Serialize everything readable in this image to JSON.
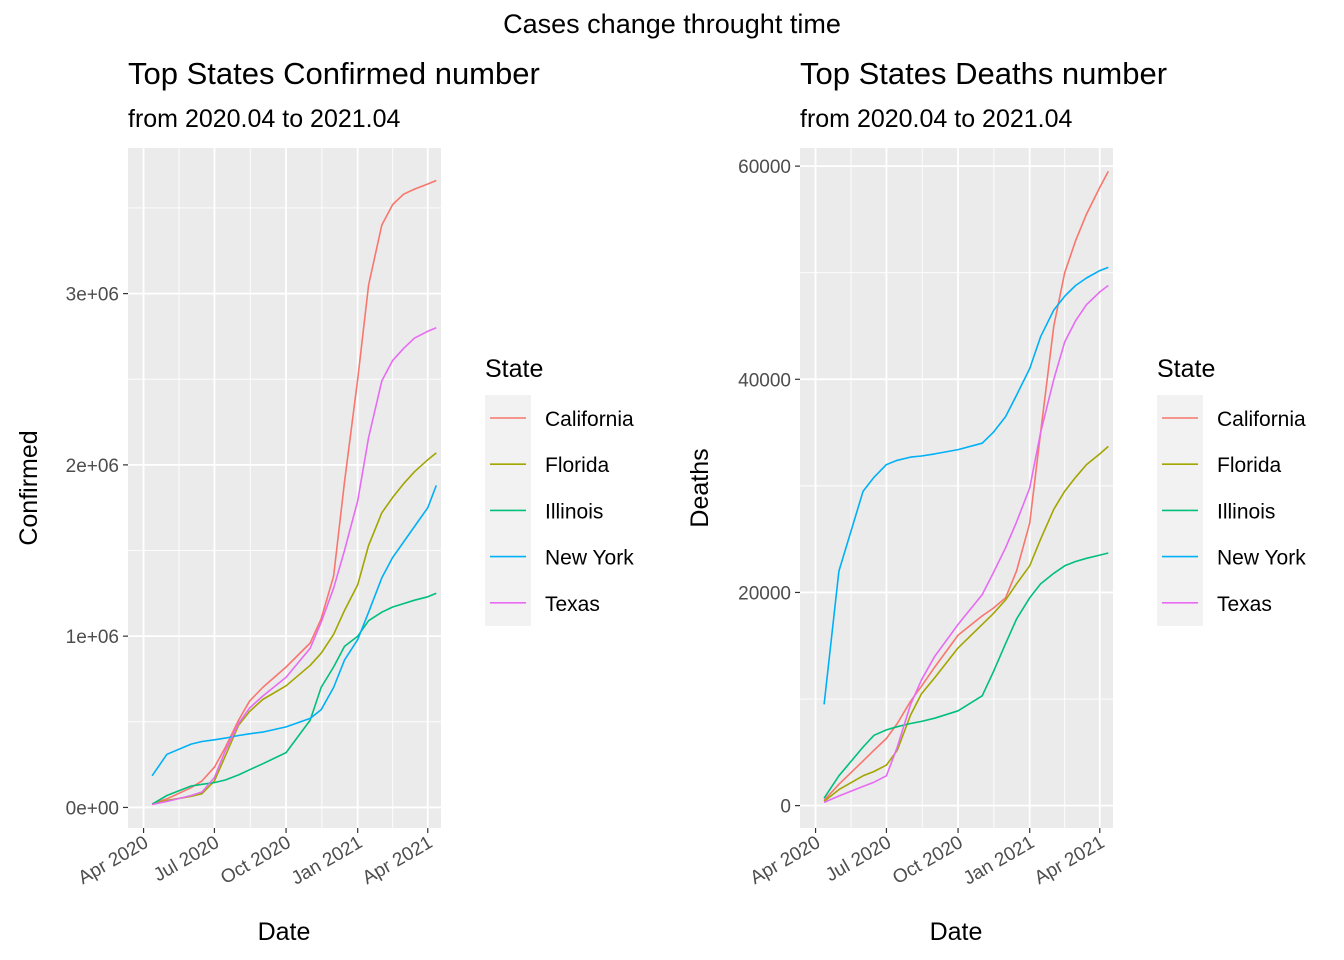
{
  "figure": {
    "title": "Cases change throught time"
  },
  "chart_data": [
    {
      "type": "line",
      "title": "Top States Confirmed number",
      "subtitle": "from 2020.04 to 2021.04",
      "xlabel": "Date",
      "ylabel": "Confirmed",
      "x_ticks": [
        "2020-04-01",
        "2020-07-01",
        "2020-10-01",
        "2021-01-01",
        "2021-04-01"
      ],
      "x_tick_labels": [
        "Apr 2020",
        "Jul 2020",
        "Oct 2020",
        "Jan 2021",
        "Apr 2021"
      ],
      "y_ticks": [
        0,
        1000000,
        2000000,
        3000000
      ],
      "y_tick_labels": [
        "0e+00",
        "1e+06",
        "2e+06",
        "3e+06"
      ],
      "xlim": [
        "2020-03-12",
        "2021-04-18"
      ],
      "ylim": [
        -120000,
        3850000
      ],
      "legend": {
        "title": "State",
        "position": "right"
      },
      "grid": true,
      "x": [
        "2020-04-12",
        "2020-05-01",
        "2020-06-01",
        "2020-06-15",
        "2020-07-01",
        "2020-07-15",
        "2020-08-01",
        "2020-08-15",
        "2020-09-01",
        "2020-10-01",
        "2020-11-01",
        "2020-11-15",
        "2020-12-01",
        "2020-12-15",
        "2021-01-01",
        "2021-01-15",
        "2021-02-01",
        "2021-02-15",
        "2021-03-01",
        "2021-03-15",
        "2021-04-01",
        "2021-04-12"
      ],
      "series": [
        {
          "name": "California",
          "color": "#F8766D",
          "values": [
            22000,
            50000,
            115000,
            155000,
            235000,
            350000,
            510000,
            620000,
            700000,
            820000,
            960000,
            1100000,
            1350000,
            1900000,
            2500000,
            3050000,
            3400000,
            3520000,
            3580000,
            3610000,
            3640000,
            3660000
          ]
        },
        {
          "name": "Florida",
          "color": "#A3A500",
          "values": [
            19000,
            40000,
            65000,
            80000,
            155000,
            300000,
            480000,
            560000,
            630000,
            710000,
            830000,
            900000,
            1010000,
            1150000,
            1300000,
            1530000,
            1720000,
            1810000,
            1890000,
            1960000,
            2030000,
            2070000
          ]
        },
        {
          "name": "Illinois",
          "color": "#00BF7D",
          "values": [
            19000,
            70000,
            125000,
            135000,
            145000,
            160000,
            190000,
            220000,
            255000,
            320000,
            510000,
            700000,
            820000,
            940000,
            1000000,
            1090000,
            1140000,
            1170000,
            1190000,
            1210000,
            1230000,
            1250000
          ]
        },
        {
          "name": "New York",
          "color": "#00B0F6",
          "values": [
            185000,
            310000,
            370000,
            385000,
            395000,
            405000,
            420000,
            430000,
            440000,
            470000,
            520000,
            570000,
            700000,
            860000,
            980000,
            1140000,
            1340000,
            1460000,
            1550000,
            1640000,
            1750000,
            1880000
          ]
        },
        {
          "name": "Texas",
          "color": "#E76BF3",
          "values": [
            17000,
            35000,
            70000,
            90000,
            175000,
            330000,
            490000,
            580000,
            650000,
            760000,
            930000,
            1080000,
            1280000,
            1500000,
            1790000,
            2160000,
            2490000,
            2610000,
            2680000,
            2740000,
            2780000,
            2800000
          ]
        }
      ]
    },
    {
      "type": "line",
      "title": "Top States Deaths number",
      "subtitle": "from 2020.04 to 2021.04",
      "xlabel": "Date",
      "ylabel": "Deaths",
      "x_ticks": [
        "2020-04-01",
        "2020-07-01",
        "2020-10-01",
        "2021-01-01",
        "2021-04-01"
      ],
      "x_tick_labels": [
        "Apr 2020",
        "Jul 2020",
        "Oct 2020",
        "Jan 2021",
        "Apr 2021"
      ],
      "y_ticks": [
        0,
        20000,
        40000,
        60000
      ],
      "y_tick_labels": [
        "0",
        "20000",
        "40000",
        "60000"
      ],
      "xlim": [
        "2020-03-12",
        "2021-04-18"
      ],
      "ylim": [
        -2100,
        61700
      ],
      "legend": {
        "title": "State",
        "position": "right"
      },
      "grid": true,
      "x": [
        "2020-04-12",
        "2020-05-01",
        "2020-06-01",
        "2020-06-15",
        "2020-07-01",
        "2020-07-15",
        "2020-08-01",
        "2020-08-15",
        "2020-09-01",
        "2020-10-01",
        "2020-11-01",
        "2020-11-15",
        "2020-12-01",
        "2020-12-15",
        "2021-01-01",
        "2021-01-15",
        "2021-02-01",
        "2021-02-15",
        "2021-03-01",
        "2021-03-15",
        "2021-04-01",
        "2021-04-12"
      ],
      "series": [
        {
          "name": "California",
          "color": "#F8766D",
          "values": [
            500,
            2000,
            4200,
            5200,
            6300,
            7700,
            9800,
            11200,
            13000,
            16000,
            17800,
            18500,
            19500,
            22000,
            26500,
            35000,
            45000,
            50000,
            53000,
            55500,
            58000,
            59500
          ]
        },
        {
          "name": "Florida",
          "color": "#A3A500",
          "values": [
            400,
            1500,
            2800,
            3200,
            3800,
            5200,
            8500,
            10500,
            12000,
            14800,
            17000,
            18000,
            19300,
            20800,
            22500,
            25000,
            27800,
            29500,
            30800,
            32000,
            33000,
            33700
          ]
        },
        {
          "name": "Illinois",
          "color": "#00BF7D",
          "values": [
            700,
            2800,
            5500,
            6600,
            7100,
            7400,
            7700,
            7900,
            8200,
            8900,
            10300,
            12500,
            15200,
            17500,
            19500,
            20800,
            21800,
            22500,
            22900,
            23200,
            23500,
            23700
          ]
        },
        {
          "name": "New York",
          "color": "#00B0F6",
          "values": [
            9500,
            22000,
            29500,
            30800,
            32000,
            32400,
            32700,
            32800,
            33000,
            33400,
            34000,
            35000,
            36500,
            38500,
            41000,
            44000,
            46500,
            47800,
            48800,
            49500,
            50200,
            50500
          ]
        },
        {
          "name": "Texas",
          "color": "#E76BF3",
          "values": [
            300,
            900,
            1800,
            2200,
            2800,
            5500,
            9500,
            11800,
            14000,
            17000,
            19800,
            21800,
            24200,
            26600,
            29800,
            35000,
            40000,
            43500,
            45500,
            47000,
            48200,
            48800
          ]
        }
      ]
    }
  ]
}
